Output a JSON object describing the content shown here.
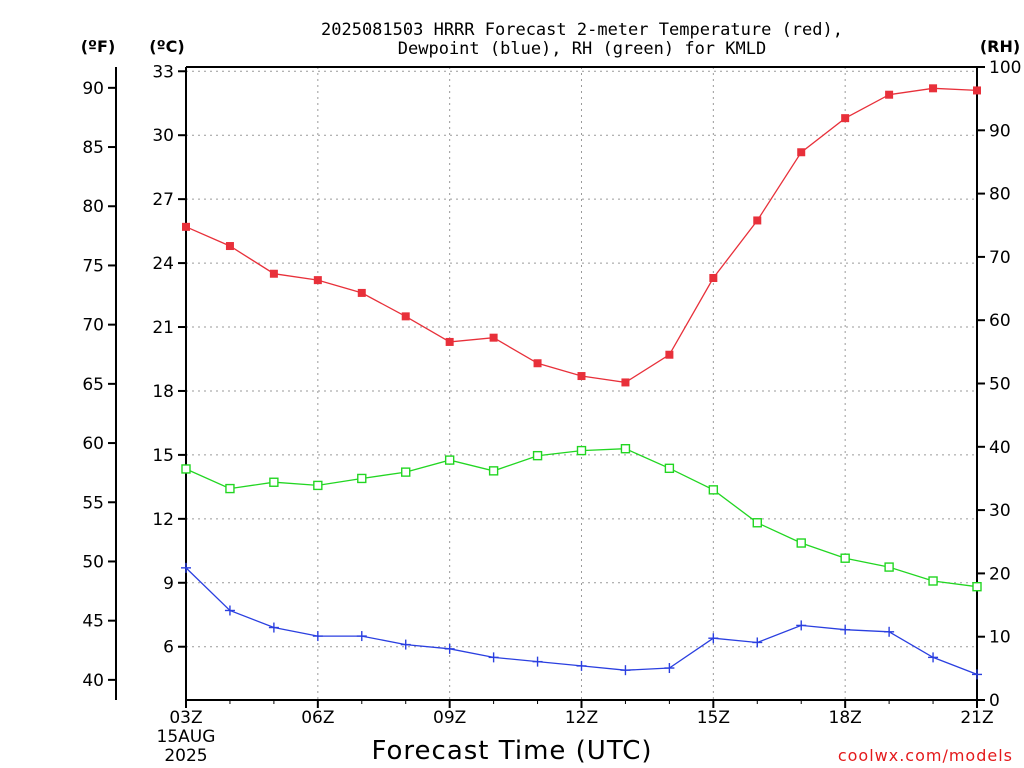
{
  "chart_data": {
    "type": "line",
    "title_lines": [
      "2025081503 HRRR Forecast 2-meter Temperature (red),",
      "Dewpoint (blue), RH (green) for KMLD"
    ],
    "xlabel": "Forecast Time (UTC)",
    "x_ticks": [
      "03Z",
      "06Z",
      "09Z",
      "12Z",
      "15Z",
      "18Z",
      "21Z"
    ],
    "x_date_line1": "15AUG",
    "x_date_line2": "2025",
    "units": {
      "fahrenheit": "(ºF)",
      "celsius": "(ºC)",
      "rh": "(RH)"
    },
    "f_ticks": [
      "40",
      "45",
      "50",
      "55",
      "60",
      "65",
      "70",
      "75",
      "80",
      "85",
      "90"
    ],
    "c_ticks": [
      "6",
      "9",
      "12",
      "15",
      "18",
      "21",
      "24",
      "27",
      "30",
      "33"
    ],
    "rh_ticks": [
      "0",
      "10",
      "20",
      "30",
      "40",
      "50",
      "60",
      "70",
      "80",
      "90",
      "100"
    ],
    "x_hours": [
      3,
      4,
      5,
      6,
      7,
      8,
      9,
      10,
      11,
      12,
      13,
      14,
      15,
      16,
      17,
      18,
      19,
      20,
      21
    ],
    "ylim_c": [
      3.5,
      33.2
    ],
    "ylim_rh": [
      0,
      100
    ],
    "grid": true,
    "series": [
      {
        "name": "Temperature",
        "axis": "celsius",
        "color": "#e8303a",
        "marker": "filled-square",
        "values": [
          25.7,
          24.8,
          23.5,
          23.2,
          22.6,
          21.5,
          20.3,
          20.5,
          19.3,
          18.7,
          18.4,
          19.7,
          23.3,
          26.0,
          29.2,
          30.8,
          31.9,
          32.2,
          32.1
        ]
      },
      {
        "name": "Dewpoint",
        "axis": "celsius",
        "color": "#2a3fe0",
        "marker": "plus",
        "values": [
          9.7,
          7.7,
          6.9,
          6.5,
          6.5,
          6.1,
          5.9,
          5.5,
          5.3,
          5.1,
          4.9,
          5.0,
          6.4,
          6.2,
          7.0,
          6.8,
          6.7,
          5.5,
          4.7
        ]
      },
      {
        "name": "RH",
        "axis": "rh",
        "color": "#22d622",
        "marker": "open-square",
        "values": [
          36.5,
          33.4,
          34.4,
          33.9,
          35.0,
          36.0,
          37.9,
          36.2,
          38.6,
          39.4,
          39.7,
          36.6,
          33.2,
          28.0,
          24.8,
          22.4,
          21.0,
          18.8,
          17.9
        ]
      }
    ]
  },
  "credit": "coolwx.com/models"
}
